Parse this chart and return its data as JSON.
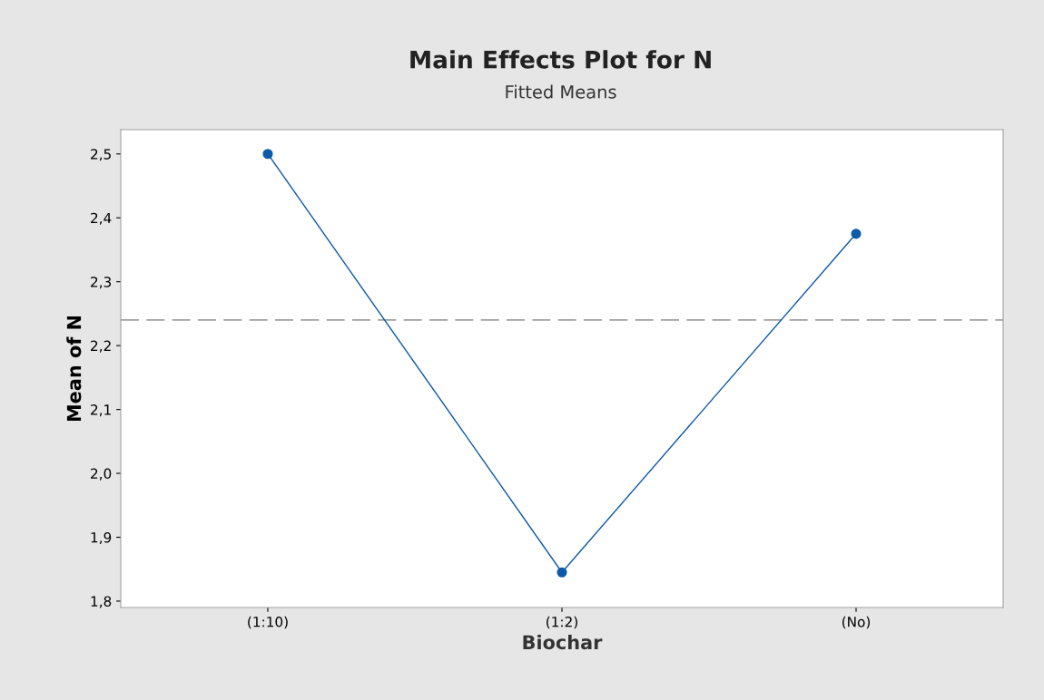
{
  "chart_data": {
    "type": "line",
    "title": "Main Effects Plot for N",
    "subtitle": "Fitted Means",
    "xlabel": "Biochar",
    "ylabel": "Mean of N",
    "categories": [
      "(1:10)",
      "(1:2)",
      "(No)"
    ],
    "series": [
      {
        "color": "#0f5aa8",
        "values": [
          2.5,
          1.845,
          2.375
        ]
      }
    ],
    "ylim": [
      1.79,
      2.538
    ],
    "yticks": [
      {
        "value": 1.8,
        "label": "1,8"
      },
      {
        "value": 1.9,
        "label": "1,9"
      },
      {
        "value": 2.0,
        "label": "2,0"
      },
      {
        "value": 2.1,
        "label": "2,1"
      },
      {
        "value": 2.2,
        "label": "2,2"
      },
      {
        "value": 2.3,
        "label": "2,3"
      },
      {
        "value": 2.4,
        "label": "2,4"
      },
      {
        "value": 2.5,
        "label": "2,5"
      }
    ],
    "ref_lines": [
      {
        "axis": "y",
        "value": 2.24,
        "color": "#a0a0a0",
        "line_style": "dashed"
      }
    ],
    "marker": "circle",
    "line_style": "solid",
    "grid": false,
    "legend": false
  }
}
